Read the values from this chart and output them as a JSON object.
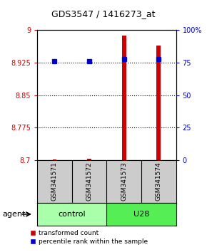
{
  "title": "GDS3547 / 1416273_at",
  "samples": [
    "GSM341571",
    "GSM341572",
    "GSM341573",
    "GSM341574"
  ],
  "red_values": [
    8.702,
    8.703,
    8.988,
    8.965
  ],
  "blue_values": [
    0.76,
    0.76,
    0.78,
    0.78
  ],
  "ylim_left": [
    8.7,
    9.0
  ],
  "ylim_right": [
    0.0,
    1.0
  ],
  "yticks_left": [
    8.7,
    8.775,
    8.85,
    8.925,
    9.0
  ],
  "ytick_labels_left": [
    "8.7",
    "8.775",
    "8.85",
    "8.925",
    "9"
  ],
  "yticks_right": [
    0.0,
    0.25,
    0.5,
    0.75,
    1.0
  ],
  "ytick_labels_right": [
    "0",
    "25",
    "50",
    "75",
    "100%"
  ],
  "background_color": "#ffffff",
  "left_tick_color": "#cc0000",
  "right_tick_color": "#0000cc",
  "red_color": "#cc0000",
  "blue_color": "#0000cc",
  "grid_color": "black",
  "sample_bg": "#cccccc",
  "group_control_color": "#aaffaa",
  "group_u28_color": "#55ee55",
  "legend_red_label": "transformed count",
  "legend_blue_label": "percentile rank within the sample",
  "bar_width": 0.12
}
